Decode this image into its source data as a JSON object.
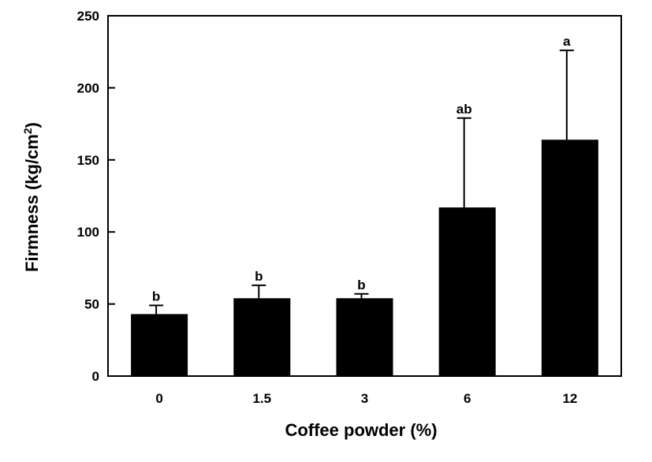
{
  "chart_data": {
    "type": "bar",
    "categories": [
      "0",
      "1.5",
      "3",
      "6",
      "12"
    ],
    "values": [
      43,
      54,
      54,
      117,
      164
    ],
    "error_upper": [
      49,
      63,
      57,
      179,
      226
    ],
    "significance": [
      "b",
      "b",
      "b",
      "ab",
      "a"
    ],
    "xlabel": "Coffee powder (%)",
    "ylabel_main": "Firmness (kg/cm",
    "ylabel_sup": "2",
    "ylabel_close": ")",
    "ylim": [
      0,
      250
    ],
    "yticks": [
      0,
      50,
      100,
      150,
      200,
      250
    ],
    "bar_color": "#000000",
    "grid": false,
    "legend": "none"
  }
}
